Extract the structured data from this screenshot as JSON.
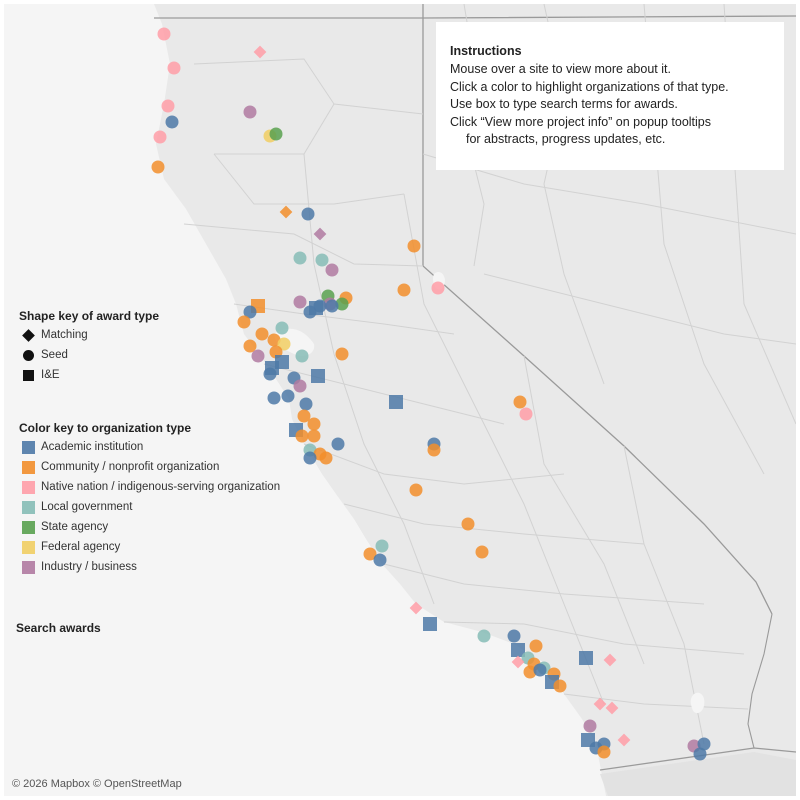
{
  "instructions": {
    "title": "Instructions",
    "lines": [
      "Mouse over a site to view more about it.",
      "Click a color to highlight organizations of that type.",
      "Use box to type search terms for awards.",
      "Click “View more project info” on popup tooltips",
      "for abstracts, progress updates, etc."
    ]
  },
  "shape_key": {
    "title": "Shape key of award type",
    "items": [
      {
        "shape": "diamond",
        "label": "Matching"
      },
      {
        "shape": "circle",
        "label": "Seed"
      },
      {
        "shape": "square",
        "label": "I&E"
      }
    ]
  },
  "color_key": {
    "title": "Color key to organization type",
    "items": [
      {
        "label": "Academic institution",
        "color": "#4e79a7"
      },
      {
        "label": "Community / nonprofit organization",
        "color": "#f28e2b"
      },
      {
        "label": "Native nation / indigenous-serving organization",
        "color": "#ff9da7"
      },
      {
        "label": "Local government",
        "color": "#86bcb6"
      },
      {
        "label": "State agency",
        "color": "#59a14f"
      },
      {
        "label": "Federal agency",
        "color": "#f1ce63"
      },
      {
        "label": "Industry / business",
        "color": "#b07aa1"
      }
    ]
  },
  "search": {
    "label": "Search awards"
  },
  "attribution": "© 2026 Mapbox © OpenStreetMap",
  "map_colors": {
    "land": "#e9e9e9",
    "ocean": "#f5f5f5",
    "border": "#9a9a9a",
    "county": "#d2d2d2"
  }
}
